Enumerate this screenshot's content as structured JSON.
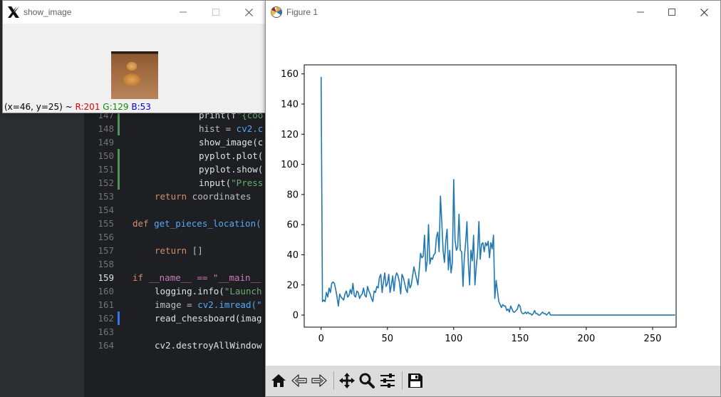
{
  "editor": {
    "lines": [
      {
        "num": "147",
        "code": "print(f\"{coo"
      },
      {
        "num": "148",
        "code": "hist = cv2.c"
      },
      {
        "num": "149",
        "code": "show_image(c"
      },
      {
        "num": "150",
        "code": "pyplot.plot("
      },
      {
        "num": "151",
        "code": "pyplot.show("
      },
      {
        "num": "152",
        "code": "input(\"Press"
      },
      {
        "num": "153",
        "code": "return coordinates"
      },
      {
        "num": "154",
        "code": ""
      },
      {
        "num": "155",
        "code": "def get_pieces_location("
      },
      {
        "num": "156",
        "code": ""
      },
      {
        "num": "157",
        "code": "return []"
      },
      {
        "num": "158",
        "code": ""
      },
      {
        "num": "159",
        "code": "if __name__ == \"__main__"
      },
      {
        "num": "160",
        "code": "logging.info(\"Launch"
      },
      {
        "num": "161",
        "code": "image = cv2.imread(\""
      },
      {
        "num": "162",
        "code": "read_chessboard(imag"
      },
      {
        "num": "163",
        "code": ""
      },
      {
        "num": "164",
        "code": "cv2.destroyAllWindow"
      }
    ]
  },
  "show_image_window": {
    "title": "show_image",
    "status": {
      "coords": "(x=46, y=25) ~ ",
      "r": "R:201",
      "g": "G:129",
      "b": "B:53"
    }
  },
  "figure_window": {
    "title": "Figure 1",
    "toolbar_icons": [
      "home-icon",
      "back-arrow-icon",
      "forward-arrow-icon",
      "pan-icon",
      "zoom-icon",
      "configure-subplots-icon",
      "save-icon"
    ]
  },
  "colors": {
    "line": "#1f77b4",
    "toolbar_bg": "#dcdcdc"
  },
  "chart_data": {
    "type": "line",
    "title": "",
    "xlabel": "",
    "ylabel": "",
    "xlim": [
      -12.75,
      267.75
    ],
    "ylim": [
      -8,
      166
    ],
    "xticks": [
      0,
      50,
      100,
      150,
      200,
      250
    ],
    "yticks": [
      0,
      20,
      40,
      60,
      80,
      100,
      120,
      140,
      160
    ],
    "grid": false,
    "series": [
      {
        "values": [
          158,
          9,
          10,
          9,
          15,
          12,
          18,
          15,
          21,
          22,
          21,
          17,
          12,
          6,
          14,
          12,
          11,
          10,
          14,
          16,
          12,
          13,
          17,
          14,
          21,
          13,
          12,
          16,
          15,
          11,
          13,
          14,
          18,
          13,
          12,
          19,
          16,
          14,
          11,
          9,
          16,
          15,
          19,
          18,
          25,
          27,
          15,
          22,
          28,
          19,
          21,
          27,
          15,
          20,
          26,
          16,
          25,
          28,
          26,
          22,
          14,
          27,
          25,
          21,
          17,
          15,
          24,
          18,
          20,
          26,
          32,
          28,
          24,
          20,
          30,
          41,
          38,
          39,
          53,
          29,
          36,
          60,
          34,
          38,
          37,
          40,
          41,
          52,
          55,
          42,
          79,
          62,
          43,
          35,
          49,
          57,
          30,
          43,
          28,
          35,
          90,
          50,
          43,
          45,
          67,
          43,
          42,
          19,
          38,
          48,
          62,
          35,
          20,
          43,
          36,
          53,
          20,
          32,
          41,
          62,
          37,
          47,
          48,
          42,
          48,
          46,
          49,
          38,
          48,
          44,
          53,
          11,
          23,
          16,
          9,
          7,
          5,
          7,
          6,
          6,
          3,
          4,
          2,
          6,
          4,
          2,
          2,
          3,
          4,
          7,
          6,
          2,
          1,
          1,
          2,
          1,
          2,
          1,
          1,
          0,
          1,
          3,
          1,
          1,
          0,
          0,
          1,
          2,
          1,
          1,
          0,
          1,
          2,
          0,
          0,
          0,
          0,
          0,
          0,
          0,
          0,
          0,
          0,
          0,
          0,
          0,
          0,
          0,
          0,
          0,
          0,
          0,
          0,
          0,
          0,
          0,
          0,
          0,
          0,
          0,
          0,
          0,
          0,
          0,
          0,
          0,
          0,
          0,
          0,
          0,
          0,
          0,
          0,
          0,
          0,
          0,
          0,
          0,
          0,
          0,
          0,
          0,
          0,
          0,
          0,
          0,
          0,
          0,
          0,
          0,
          0,
          0,
          0,
          0,
          0,
          0,
          0,
          0,
          0,
          0,
          0,
          0,
          0,
          0,
          0,
          0,
          0,
          0,
          0,
          0,
          0,
          0,
          0,
          0,
          0,
          0,
          0,
          0,
          0,
          0,
          0,
          0,
          0,
          0,
          0,
          0,
          0,
          0
        ]
      }
    ]
  }
}
